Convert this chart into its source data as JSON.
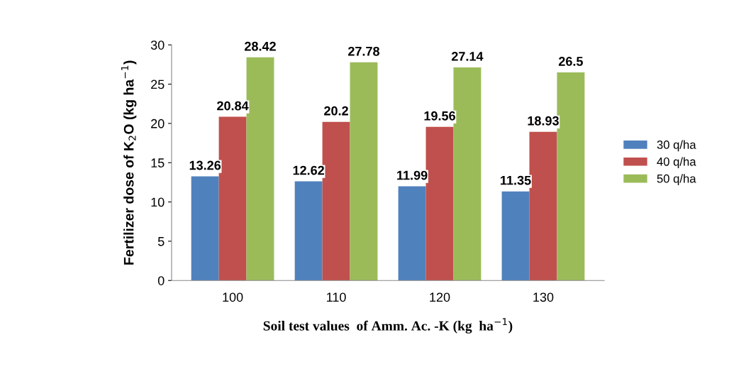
{
  "chart_data": {
    "type": "bar",
    "xlabel": "Soil test values  of Amm. Ac. -K (kg  ha$^{−1}$)",
    "ylabel": "Fertilizer dose of K$_{2}$O (kg ha$^{−1}$)",
    "categories": [
      "100",
      "110",
      "120",
      "130"
    ],
    "series": [
      {
        "name": "30 q/ha",
        "color": "#4f81bd",
        "values": [
          13.26,
          12.62,
          11.99,
          11.35
        ]
      },
      {
        "name": "40 q/ha",
        "color": "#c0504d",
        "values": [
          20.84,
          20.2,
          19.56,
          18.93
        ]
      },
      {
        "name": "50 q/ha",
        "color": "#9bbb59",
        "values": [
          28.42,
          27.78,
          27.14,
          26.5
        ]
      }
    ],
    "ylim": [
      0,
      30
    ],
    "yticks": [
      0,
      5,
      10,
      15,
      20,
      25,
      30
    ],
    "data_labels": true,
    "legend": "right",
    "grid": false
  }
}
